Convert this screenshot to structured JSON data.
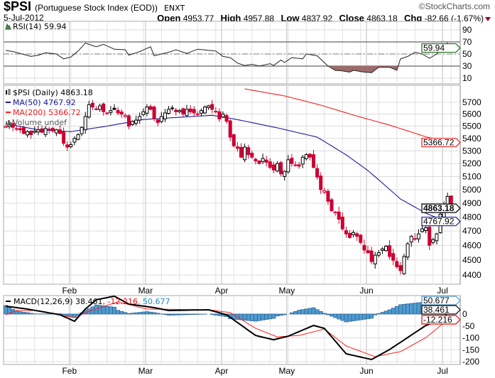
{
  "header": {
    "symbol": "$PSI",
    "name": "(Portuguese Stock Index (EOD))",
    "exchange": "ENXT",
    "copyright": "©StockCharts.com",
    "date": "5-Jul-2012",
    "open_label": "Open",
    "open": "4953.77",
    "high_label": "High",
    "high": "4957.88",
    "low_label": "Low",
    "low": "4837.92",
    "close_label": "Close",
    "close": "4863.18",
    "chg_label": "Chg",
    "chg": "-82.66 (-1.67%)"
  },
  "colors": {
    "up": "#000000",
    "down": "#cc0033",
    "ma50": "#1a1a99",
    "ma200": "#ee2222",
    "macd": "#000000",
    "signal": "#ff2020",
    "histogram": "#4f9bd0",
    "histogram_edge": "#2a5f91",
    "rsi_oversold_fill": "#9e6b6b",
    "rsi_tag": "#1f6b1f"
  },
  "months": [
    {
      "label": "Feb",
      "index": 18
    },
    {
      "label": "Mar",
      "index": 39
    },
    {
      "label": "Apr",
      "index": 60
    },
    {
      "label": "May",
      "index": 78
    },
    {
      "label": "Jun",
      "index": 100
    },
    {
      "label": "Jul",
      "index": 121
    }
  ],
  "chart_data": [
    {
      "type": "line",
      "title": "RSI(14) 59.94",
      "last_tag": "59.94",
      "ylim": [
        0,
        100
      ],
      "yticks": [
        "90",
        "70",
        "50",
        "30",
        "10"
      ],
      "ytick_values": [
        90,
        70,
        50,
        30,
        10
      ],
      "overbought": 70,
      "oversold": 30,
      "midline": 50,
      "points": [
        [
          0,
          56
        ],
        [
          2,
          54
        ],
        [
          4,
          51
        ],
        [
          7,
          46
        ],
        [
          9,
          48
        ],
        [
          11,
          52
        ],
        [
          14,
          50
        ],
        [
          16,
          42
        ],
        [
          18,
          45
        ],
        [
          20,
          55
        ],
        [
          22,
          68
        ],
        [
          25,
          62
        ],
        [
          27,
          66
        ],
        [
          30,
          58
        ],
        [
          33,
          57
        ],
        [
          34,
          48
        ],
        [
          37,
          54
        ],
        [
          40,
          62
        ],
        [
          41,
          47
        ],
        [
          45,
          53
        ],
        [
          47,
          57
        ],
        [
          50,
          51
        ],
        [
          53,
          58
        ],
        [
          56,
          56
        ],
        [
          58,
          55
        ],
        [
          60,
          46
        ],
        [
          62,
          44
        ],
        [
          64,
          35
        ],
        [
          66,
          31
        ],
        [
          68,
          33
        ],
        [
          70,
          30
        ],
        [
          73,
          34
        ],
        [
          74,
          31
        ],
        [
          76,
          40
        ],
        [
          77,
          36
        ],
        [
          79,
          44
        ],
        [
          82,
          42
        ],
        [
          83,
          50
        ],
        [
          86,
          47
        ],
        [
          89,
          30
        ],
        [
          91,
          23
        ],
        [
          93,
          22
        ],
        [
          95,
          20
        ],
        [
          96,
          23
        ],
        [
          99,
          20
        ],
        [
          101,
          19
        ],
        [
          103,
          28
        ],
        [
          106,
          28
        ],
        [
          108,
          23
        ],
        [
          109,
          42
        ],
        [
          111,
          46
        ],
        [
          113,
          53
        ],
        [
          115,
          50
        ],
        [
          117,
          43
        ],
        [
          119,
          50
        ],
        [
          121,
          66
        ],
        [
          122,
          68
        ],
        [
          123,
          59.94
        ]
      ]
    },
    {
      "type": "candlestick",
      "title": "$PSI (Daily) 4863.18",
      "legend": [
        "MA(50) 4767.92",
        "MA(200) 5366.72",
        "Volume undef"
      ],
      "scale": "log",
      "ylim": [
        4380,
        5830
      ],
      "yticks": [
        "5700",
        "5600",
        "5500",
        "5400",
        "5300",
        "5200",
        "5100",
        "5000",
        "4900",
        "4800",
        "4700",
        "4600",
        "4500",
        "4400"
      ],
      "ytick_values": [
        5700,
        5600,
        5500,
        5400,
        5300,
        5200,
        5100,
        5000,
        4900,
        4800,
        4700,
        4600,
        4500,
        4400
      ],
      "tags": {
        "close": "4863.18",
        "ma50": "4767.92",
        "ma200": "5366.72"
      },
      "first_open": 5510,
      "last_ohlc": [
        4953.77,
        4957.88,
        4837.92,
        4863.18
      ],
      "closes": [
        5500,
        5510,
        5490,
        5480,
        5470,
        5440,
        5455,
        5430,
        5460,
        5470,
        5450,
        5480,
        5470,
        5460,
        5470,
        5440,
        5360,
        5330,
        5350,
        5400,
        5430,
        5490,
        5580,
        5680,
        5660,
        5640,
        5670,
        5620,
        5610,
        5630,
        5640,
        5610,
        5600,
        5590,
        5500,
        5540,
        5550,
        5580,
        5620,
        5660,
        5640,
        5560,
        5530,
        5580,
        5610,
        5640,
        5650,
        5620,
        5630,
        5600,
        5640,
        5620,
        5610,
        5600,
        5630,
        5660,
        5670,
        5640,
        5620,
        5560,
        5600,
        5540,
        5410,
        5340,
        5320,
        5250,
        5330,
        5270,
        5250,
        5220,
        5200,
        5240,
        5210,
        5170,
        5150,
        5200,
        5120,
        5140,
        5230,
        5200,
        5190,
        5180,
        5250,
        5270,
        5250,
        5170,
        5096,
        5001,
        4992,
        4914,
        4845,
        4836,
        4784,
        4715,
        4680,
        4654,
        4689,
        4663,
        4620,
        4568,
        4550,
        4490,
        4533,
        4550,
        4576,
        4594,
        4524,
        4498,
        4455,
        4429,
        4524,
        4611,
        4663,
        4645,
        4680,
        4715,
        4724,
        4600,
        4640,
        4680,
        4820,
        4880,
        4950,
        4863.18
      ],
      "ma50": [
        [
          0,
          5520
        ],
        [
          9,
          5470
        ],
        [
          18,
          5455
        ],
        [
          28,
          5500
        ],
        [
          38,
          5555
        ],
        [
          57,
          5590
        ],
        [
          63,
          5560
        ],
        [
          75,
          5486
        ],
        [
          86,
          5410
        ],
        [
          94,
          5268
        ],
        [
          100,
          5146
        ],
        [
          109,
          4931
        ],
        [
          116,
          4827
        ],
        [
          121,
          4775
        ],
        [
          123,
          4767.92
        ]
      ],
      "ma200": [
        [
          66,
          5816
        ],
        [
          77,
          5755
        ],
        [
          87,
          5676
        ],
        [
          96,
          5592
        ],
        [
          106,
          5508
        ],
        [
          116,
          5413
        ],
        [
          123,
          5366.72
        ]
      ]
    },
    {
      "type": "line",
      "title": "MACD(12,26,9) 38.461",
      "signal_label": ", -12.216",
      "hist_label": ", 50.677",
      "tags": {
        "macd": "38.461",
        "signal": "-12.216",
        "histogram": "50.677"
      },
      "ylim": [
        -210,
        75
      ],
      "yticks": [
        "0",
        "-50",
        "-100",
        "-150",
        "-200"
      ],
      "ytick_values": [
        0,
        -50,
        -100,
        -150,
        -200
      ],
      "macd": [
        [
          0,
          33
        ],
        [
          6,
          21
        ],
        [
          15,
          -3
        ],
        [
          19,
          -30
        ],
        [
          22,
          21
        ],
        [
          25,
          60
        ],
        [
          30,
          75
        ],
        [
          34,
          42
        ],
        [
          41,
          27
        ],
        [
          45,
          15
        ],
        [
          56,
          18
        ],
        [
          61,
          -3
        ],
        [
          69,
          -90
        ],
        [
          74,
          -108
        ],
        [
          78,
          -93
        ],
        [
          85,
          -48
        ],
        [
          88,
          -60
        ],
        [
          94,
          -167
        ],
        [
          101,
          -191
        ],
        [
          106,
          -149
        ],
        [
          116,
          -48
        ],
        [
          121,
          -18
        ],
        [
          123,
          38.461
        ]
      ],
      "signal": [
        [
          0,
          -3
        ],
        [
          3,
          15
        ],
        [
          8,
          15
        ],
        [
          19,
          -15
        ],
        [
          23,
          12
        ],
        [
          31,
          51
        ],
        [
          39,
          21
        ],
        [
          56,
          18
        ],
        [
          62,
          6
        ],
        [
          69,
          -60
        ],
        [
          75,
          -96
        ],
        [
          81,
          -90
        ],
        [
          88,
          -63
        ],
        [
          94,
          -134
        ],
        [
          102,
          -179
        ],
        [
          109,
          -158
        ],
        [
          116,
          -99
        ],
        [
          123,
          -12.216
        ]
      ]
    }
  ]
}
